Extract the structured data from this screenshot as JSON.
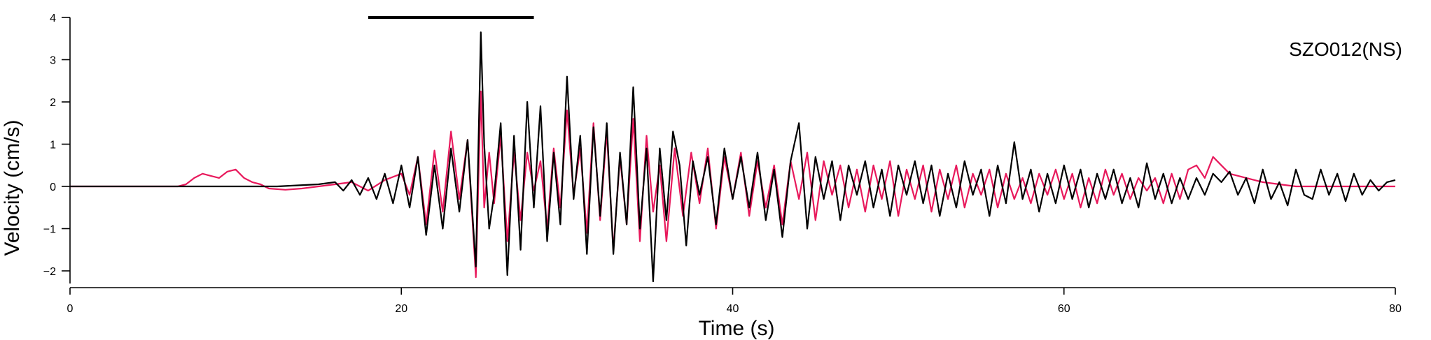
{
  "chart_data": {
    "type": "line",
    "station_label": "SZO012(NS)",
    "xlabel": "Time (s)",
    "ylabel": "Velocity (cm/s)",
    "xlim": [
      0,
      80
    ],
    "ylim": [
      -2.3,
      4
    ],
    "xticks": [
      0,
      20,
      40,
      60,
      80
    ],
    "yticks": [
      -2,
      -1,
      0,
      1,
      2,
      3,
      4
    ],
    "grid": false,
    "marker_bar": {
      "x_start": 18,
      "x_end": 28,
      "y": 4
    },
    "colors": {
      "black_series": "#000000",
      "pink_series": "#e8195c",
      "marker_bar": "#000000"
    },
    "series": [
      {
        "color": "#000000",
        "x": [
          0,
          2.5,
          5,
          7.5,
          10,
          12.5,
          15,
          16,
          16.5,
          17,
          17.5,
          18,
          18.5,
          19,
          19.5,
          20,
          20.5,
          21,
          21.5,
          22,
          22.5,
          23,
          23.5,
          24,
          24.5,
          24.8,
          25,
          25.3,
          25.6,
          26,
          26.4,
          26.8,
          27.2,
          27.6,
          28,
          28.4,
          28.8,
          29.2,
          29.6,
          30,
          30.4,
          30.8,
          31.2,
          31.6,
          32,
          32.4,
          32.8,
          33.2,
          33.6,
          34,
          34.4,
          34.8,
          35.2,
          35.6,
          36,
          36.4,
          36.8,
          37.2,
          37.6,
          38,
          38.5,
          39,
          39.5,
          40,
          40.5,
          41,
          41.5,
          42,
          42.5,
          43,
          43.5,
          44,
          44.5,
          45,
          45.5,
          46,
          46.5,
          47,
          47.5,
          48,
          48.5,
          49,
          49.5,
          50,
          50.5,
          51,
          51.5,
          52,
          52.5,
          53,
          53.5,
          54,
          54.5,
          55,
          55.5,
          56,
          56.5,
          57,
          57.5,
          58,
          58.5,
          59,
          59.5,
          60,
          60.5,
          61,
          61.5,
          62,
          62.5,
          63,
          63.5,
          64,
          64.5,
          65,
          65.5,
          66,
          66.5,
          67,
          67.5,
          68,
          68.5,
          69,
          69.5,
          70,
          70.5,
          71,
          71.5,
          72,
          72.5,
          73,
          73.5,
          74,
          74.5,
          75,
          75.5,
          76,
          76.5,
          77,
          77.5,
          78,
          78.5,
          79,
          79.5,
          80
        ],
        "values": [
          0,
          0,
          0,
          0,
          0,
          0,
          0.05,
          0.1,
          -0.1,
          0.15,
          -0.2,
          0.2,
          -0.3,
          0.3,
          -0.4,
          0.5,
          -0.5,
          0.7,
          -1.15,
          0.5,
          -1.0,
          0.9,
          -0.6,
          1.1,
          -1.9,
          3.65,
          1.0,
          -1.0,
          -0.2,
          1.5,
          -2.1,
          1.2,
          -1.5,
          2.0,
          -0.5,
          1.9,
          -1.3,
          0.8,
          -0.9,
          2.6,
          -0.3,
          1.2,
          -1.6,
          1.4,
          -0.7,
          1.5,
          -1.6,
          0.8,
          -0.9,
          2.35,
          -1.0,
          0.9,
          -2.25,
          0.9,
          -0.8,
          1.3,
          0.5,
          -1.4,
          0.6,
          -0.2,
          0.7,
          -0.9,
          0.9,
          -0.3,
          0.7,
          -0.5,
          0.8,
          -0.8,
          0.4,
          -1.2,
          0.6,
          1.5,
          -1.0,
          0.7,
          -0.3,
          0.6,
          -0.8,
          0.5,
          -0.2,
          0.6,
          -0.5,
          0.4,
          -0.7,
          0.5,
          -0.2,
          0.6,
          -0.4,
          0.5,
          -0.7,
          0.3,
          -0.5,
          0.6,
          -0.2,
          0.4,
          -0.7,
          0.5,
          -0.4,
          1.05,
          -0.3,
          0.4,
          -0.6,
          0.3,
          -0.4,
          0.5,
          -0.3,
          0.4,
          -0.5,
          0.3,
          -0.3,
          0.4,
          -0.4,
          0.2,
          -0.5,
          0.55,
          -0.3,
          0.3,
          -0.4,
          0.2,
          -0.3,
          0.2,
          -0.2,
          0.3,
          0.1,
          0.35,
          -0.2,
          0.2,
          -0.4,
          0.4,
          -0.3,
          0.1,
          -0.45,
          0.4,
          -0.2,
          -0.3,
          0.4,
          -0.2,
          0.3,
          -0.35,
          0.3,
          -0.2,
          0.15,
          -0.1,
          0.1,
          0.15
        ],
        "visible_values": {
          "peak_max": 3.65,
          "peak_min": -2.25
        }
      },
      {
        "color": "#e8195c",
        "x": [
          0,
          2.5,
          5,
          6.5,
          7,
          7.5,
          8,
          8.5,
          9,
          9.5,
          10,
          10.5,
          11,
          11.5,
          12,
          13,
          14,
          15,
          16,
          17,
          18,
          19,
          20,
          20.5,
          21,
          21.5,
          22,
          22.5,
          23,
          23.5,
          24,
          24.5,
          24.8,
          25,
          25.3,
          25.6,
          26,
          26.4,
          26.8,
          27.2,
          27.6,
          28,
          28.4,
          28.8,
          29.2,
          29.6,
          30,
          30.4,
          30.8,
          31.2,
          31.6,
          32,
          32.4,
          32.8,
          33.2,
          33.6,
          34,
          34.4,
          34.8,
          35.2,
          35.6,
          36,
          36.5,
          37,
          37.5,
          38,
          38.5,
          39,
          39.5,
          40,
          40.5,
          41,
          41.5,
          42,
          42.5,
          43,
          43.5,
          44,
          44.5,
          45,
          45.5,
          46,
          46.5,
          47,
          47.5,
          48,
          48.5,
          49,
          49.5,
          50,
          50.5,
          51,
          51.5,
          52,
          52.5,
          53,
          53.5,
          54,
          54.5,
          55,
          55.5,
          56,
          56.5,
          57,
          57.5,
          58,
          58.5,
          59,
          59.5,
          60,
          60.5,
          61,
          61.5,
          62,
          62.5,
          63,
          63.5,
          64,
          64.5,
          65,
          65.5,
          66,
          66.5,
          67,
          67.5,
          68,
          68.5,
          69,
          69.5,
          70,
          71,
          72,
          73,
          74,
          75,
          76,
          77,
          78,
          79,
          80
        ],
        "values": [
          0,
          0,
          0,
          0,
          0.05,
          0.2,
          0.3,
          0.25,
          0.2,
          0.35,
          0.4,
          0.2,
          0.1,
          0.05,
          -0.05,
          -0.08,
          -0.05,
          0,
          0.05,
          0.1,
          -0.1,
          0.15,
          0.3,
          -0.2,
          0.7,
          -0.9,
          0.85,
          -0.6,
          1.3,
          -0.3,
          1.1,
          -2.15,
          2.25,
          -0.5,
          0.8,
          -0.4,
          1.2,
          -1.3,
          0.8,
          -0.8,
          0.8,
          -0.1,
          0.6,
          -1.0,
          0.9,
          -0.5,
          1.8,
          -0.2,
          0.9,
          -1.1,
          1.5,
          -0.8,
          1.3,
          -1.5,
          0.7,
          -0.9,
          1.6,
          -1.3,
          1.2,
          -0.6,
          0.5,
          -1.3,
          0.9,
          -0.7,
          0.8,
          -0.4,
          0.9,
          -1.0,
          0.7,
          -0.3,
          0.8,
          -0.7,
          0.6,
          -0.5,
          0.5,
          -0.9,
          0.6,
          -0.3,
          0.8,
          -0.8,
          0.6,
          -0.2,
          0.5,
          -0.5,
          0.4,
          -0.6,
          0.5,
          -0.3,
          0.6,
          -0.7,
          0.4,
          -0.3,
          0.5,
          -0.6,
          0.4,
          -0.3,
          0.5,
          -0.5,
          0.3,
          -0.2,
          0.4,
          -0.5,
          0.3,
          -0.3,
          0.2,
          -0.4,
          0.3,
          -0.2,
          0.4,
          -0.3,
          0.3,
          -0.5,
          0.2,
          -0.4,
          0.4,
          -0.2,
          0.3,
          -0.3,
          0.2,
          -0.1,
          0.2,
          -0.4,
          0.3,
          -0.3,
          0.4,
          0.5,
          0.2,
          0.7,
          0.5,
          0.3,
          0.2,
          0.1,
          0.05,
          0,
          0,
          0,
          0,
          0,
          0,
          0
        ]
      }
    ]
  }
}
